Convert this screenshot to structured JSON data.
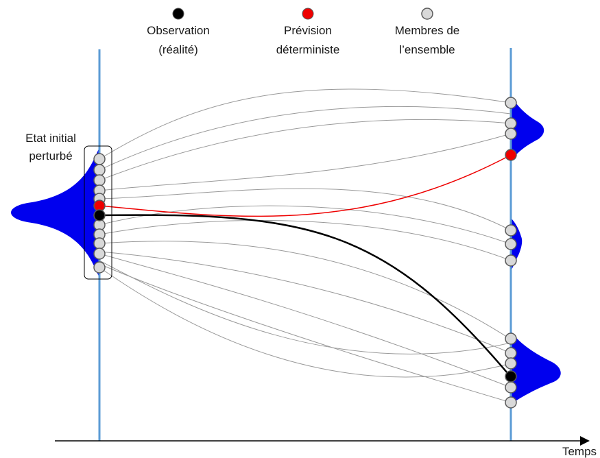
{
  "legend": {
    "observation": {
      "line1": "Observation",
      "line2": "(réalité)"
    },
    "deterministic": {
      "line1": "Prévision",
      "line2": "déterministe"
    },
    "members": {
      "line1": "Membres de",
      "line2": "l’ensemble"
    }
  },
  "initial_state": {
    "line1": "Etat initial",
    "line2": "perturbé"
  },
  "axis": {
    "time_label": "Temps"
  },
  "colors": {
    "distribution": "#0000ee",
    "timeline": "#5b9bd5",
    "observation": "#000000",
    "deterministic": "#ee0000",
    "member_fill": "#d9d9d9",
    "trajectory": "#999999"
  },
  "counts": {
    "initial_members": 13,
    "final_members_upper": 3,
    "final_members_middle": 3,
    "final_members_lower": 6
  }
}
